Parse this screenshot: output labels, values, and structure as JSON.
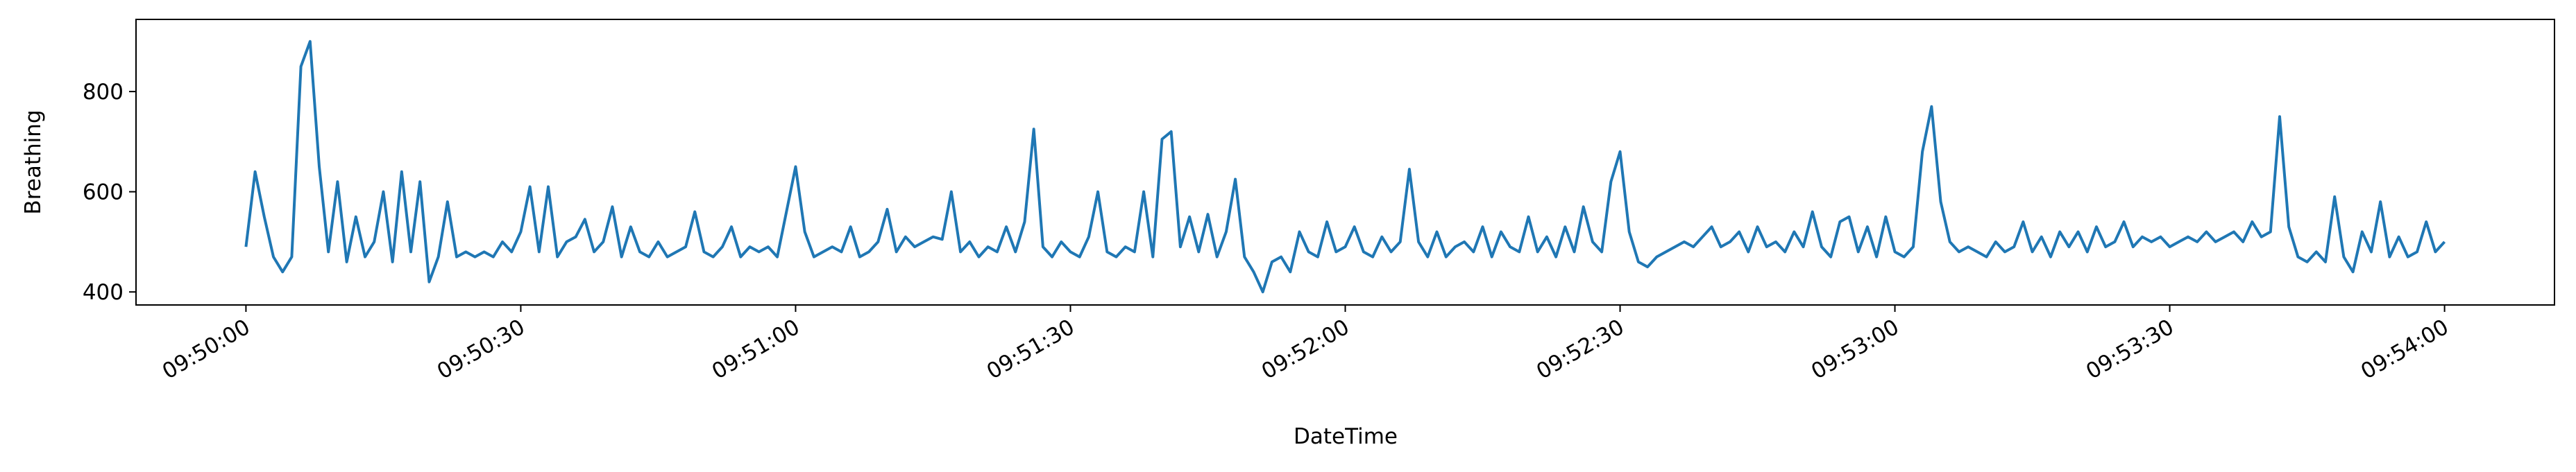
{
  "chart_data": {
    "type": "line",
    "x_label": "DateTime",
    "y_label": "Breathing",
    "x": [
      "09:50:00",
      "09:50:01",
      "09:50:02",
      "09:50:03",
      "09:50:04",
      "09:50:05",
      "09:50:06",
      "09:50:07",
      "09:50:08",
      "09:50:09",
      "09:50:10",
      "09:50:11",
      "09:50:12",
      "09:50:13",
      "09:50:14",
      "09:50:15",
      "09:50:16",
      "09:50:17",
      "09:50:18",
      "09:50:19",
      "09:50:20",
      "09:50:21",
      "09:50:22",
      "09:50:23",
      "09:50:24",
      "09:50:25",
      "09:50:26",
      "09:50:27",
      "09:50:28",
      "09:50:29",
      "09:50:30",
      "09:50:31",
      "09:50:32",
      "09:50:33",
      "09:50:34",
      "09:50:35",
      "09:50:36",
      "09:50:37",
      "09:50:38",
      "09:50:39",
      "09:50:40",
      "09:50:41",
      "09:50:42",
      "09:50:43",
      "09:50:44",
      "09:50:45",
      "09:50:46",
      "09:50:47",
      "09:50:48",
      "09:50:49",
      "09:50:50",
      "09:50:51",
      "09:50:52",
      "09:50:53",
      "09:50:54",
      "09:50:55",
      "09:50:56",
      "09:50:57",
      "09:50:58",
      "09:50:59",
      "09:51:00",
      "09:51:01",
      "09:51:02",
      "09:51:03",
      "09:51:04",
      "09:51:05",
      "09:51:06",
      "09:51:07",
      "09:51:08",
      "09:51:09",
      "09:51:10",
      "09:51:11",
      "09:51:12",
      "09:51:13",
      "09:51:14",
      "09:51:15",
      "09:51:16",
      "09:51:17",
      "09:51:18",
      "09:51:19",
      "09:51:20",
      "09:51:21",
      "09:51:22",
      "09:51:23",
      "09:51:24",
      "09:51:25",
      "09:51:26",
      "09:51:27",
      "09:51:28",
      "09:51:29",
      "09:51:30",
      "09:51:31",
      "09:51:32",
      "09:51:33",
      "09:51:34",
      "09:51:35",
      "09:51:36",
      "09:51:37",
      "09:51:38",
      "09:51:39",
      "09:51:40",
      "09:51:41",
      "09:51:42",
      "09:51:43",
      "09:51:44",
      "09:51:45",
      "09:51:46",
      "09:51:47",
      "09:51:48",
      "09:51:49",
      "09:51:50",
      "09:51:51",
      "09:51:52",
      "09:51:53",
      "09:51:54",
      "09:51:55",
      "09:51:56",
      "09:51:57",
      "09:51:58",
      "09:51:59",
      "09:52:00",
      "09:52:01",
      "09:52:02",
      "09:52:03",
      "09:52:04",
      "09:52:05",
      "09:52:06",
      "09:52:07",
      "09:52:08",
      "09:52:09",
      "09:52:10",
      "09:52:11",
      "09:52:12",
      "09:52:13",
      "09:52:14",
      "09:52:15",
      "09:52:16",
      "09:52:17",
      "09:52:18",
      "09:52:19",
      "09:52:20",
      "09:52:21",
      "09:52:22",
      "09:52:23",
      "09:52:24",
      "09:52:25",
      "09:52:26",
      "09:52:27",
      "09:52:28",
      "09:52:29",
      "09:52:30",
      "09:52:31",
      "09:52:32",
      "09:52:33",
      "09:52:34",
      "09:52:35",
      "09:52:36",
      "09:52:37",
      "09:52:38",
      "09:52:39",
      "09:52:40",
      "09:52:41",
      "09:52:42",
      "09:52:43",
      "09:52:44",
      "09:52:45",
      "09:52:46",
      "09:52:47",
      "09:52:48",
      "09:52:49",
      "09:52:50",
      "09:52:51",
      "09:52:52",
      "09:52:53",
      "09:52:54",
      "09:52:55",
      "09:52:56",
      "09:52:57",
      "09:52:58",
      "09:52:59",
      "09:53:00",
      "09:53:01",
      "09:53:02",
      "09:53:03",
      "09:53:04",
      "09:53:05",
      "09:53:06",
      "09:53:07",
      "09:53:08",
      "09:53:09",
      "09:53:10",
      "09:53:11",
      "09:53:12",
      "09:53:13",
      "09:53:14",
      "09:53:15",
      "09:53:16",
      "09:53:17",
      "09:53:18",
      "09:53:19",
      "09:53:20",
      "09:53:21",
      "09:53:22",
      "09:53:23",
      "09:53:24",
      "09:53:25",
      "09:53:26",
      "09:53:27",
      "09:53:28",
      "09:53:29",
      "09:53:30",
      "09:53:31",
      "09:53:32",
      "09:53:33",
      "09:53:34",
      "09:53:35",
      "09:53:36",
      "09:53:37",
      "09:53:38",
      "09:53:39",
      "09:53:40",
      "09:53:41",
      "09:53:42",
      "09:53:43",
      "09:53:44",
      "09:53:45",
      "09:53:46",
      "09:53:47",
      "09:53:48",
      "09:53:49",
      "09:53:50",
      "09:53:51",
      "09:53:52",
      "09:53:53",
      "09:53:54",
      "09:53:55",
      "09:53:56",
      "09:53:57",
      "09:53:58",
      "09:53:59",
      "09:54:00"
    ],
    "series": [
      {
        "color": "#1f77b4",
        "values": [
          490,
          640,
          550,
          470,
          440,
          470,
          850,
          900,
          650,
          480,
          620,
          460,
          550,
          470,
          500,
          600,
          460,
          640,
          480,
          620,
          420,
          470,
          580,
          470,
          480,
          470,
          480,
          470,
          500,
          480,
          520,
          610,
          480,
          610,
          470,
          500,
          510,
          545,
          480,
          500,
          570,
          470,
          530,
          480,
          470,
          500,
          470,
          480,
          490,
          560,
          480,
          470,
          490,
          530,
          470,
          490,
          480,
          490,
          470,
          560,
          650,
          520,
          470,
          480,
          490,
          480,
          530,
          470,
          480,
          500,
          565,
          480,
          510,
          490,
          500,
          510,
          505,
          600,
          480,
          500,
          470,
          490,
          480,
          530,
          480,
          540,
          725,
          490,
          470,
          500,
          480,
          470,
          510,
          600,
          480,
          470,
          490,
          480,
          600,
          470,
          705,
          720,
          490,
          550,
          480,
          555,
          470,
          520,
          625,
          470,
          440,
          400,
          460,
          470,
          440,
          520,
          480,
          470,
          540,
          480,
          490,
          530,
          480,
          470,
          510,
          480,
          500,
          645,
          500,
          470,
          520,
          470,
          490,
          500,
          480,
          530,
          470,
          520,
          490,
          480,
          550,
          480,
          510,
          470,
          530,
          480,
          570,
          500,
          480,
          620,
          680,
          520,
          460,
          450,
          470,
          480,
          490,
          500,
          490,
          510,
          530,
          490,
          500,
          520,
          480,
          530,
          490,
          500,
          480,
          520,
          490,
          560,
          490,
          470,
          540,
          550,
          480,
          530,
          470,
          550,
          480,
          470,
          490,
          680,
          770,
          580,
          500,
          480,
          490,
          480,
          470,
          500,
          480,
          490,
          540,
          480,
          510,
          470,
          520,
          490,
          520,
          480,
          530,
          490,
          500,
          540,
          490,
          510,
          500,
          510,
          490,
          500,
          510,
          500,
          520,
          500,
          510,
          520,
          500,
          540,
          510,
          520,
          750,
          530,
          470,
          460,
          480,
          460,
          590,
          470,
          440,
          520,
          480,
          580,
          470,
          510,
          470,
          480,
          540,
          480,
          500
        ]
      }
    ],
    "xlim": [
      "09:49:48",
      "09:54:12"
    ],
    "xticks": [
      "09:50:00",
      "09:50:30",
      "09:51:00",
      "09:51:30",
      "09:52:00",
      "09:52:30",
      "09:53:00",
      "09:53:30",
      "09:54:00"
    ],
    "ylim": [
      374,
      944
    ],
    "yticks": [
      400,
      600,
      800
    ]
  }
}
